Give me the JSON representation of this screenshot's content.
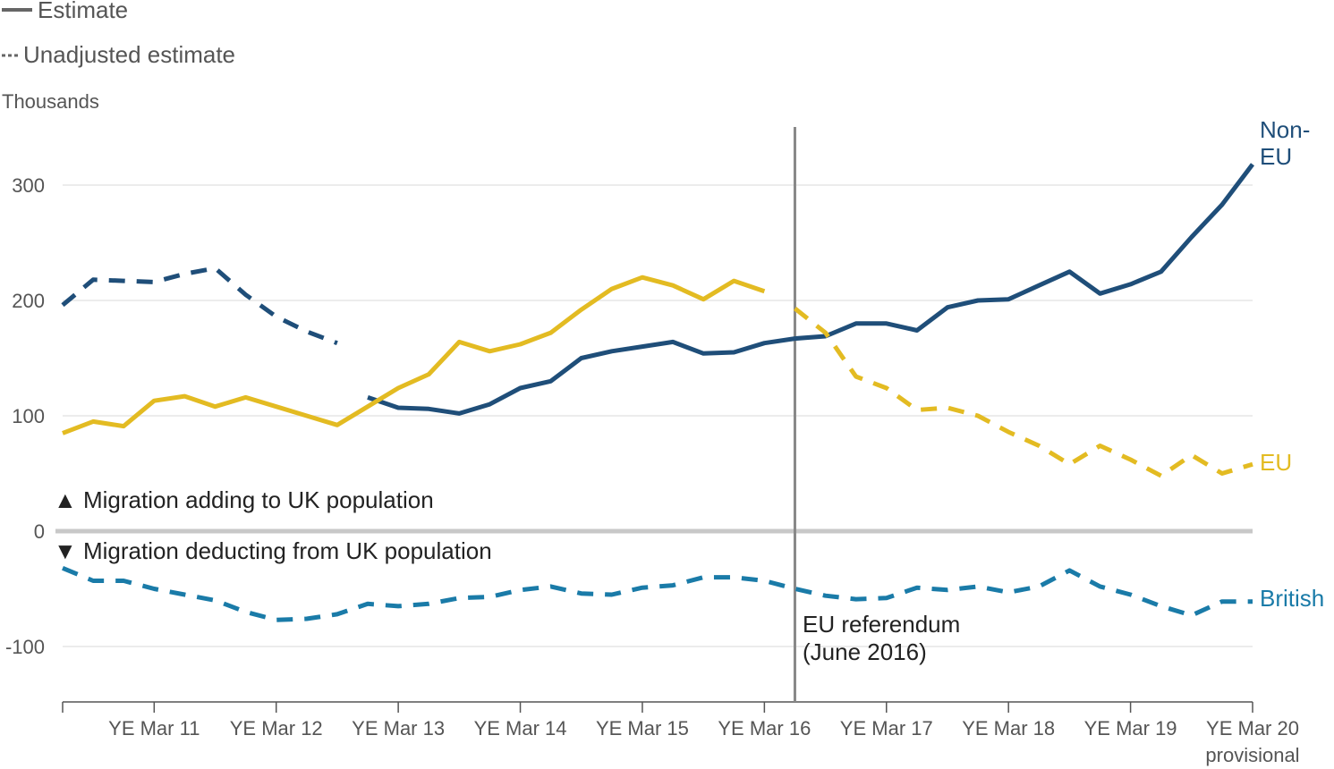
{
  "legend": {
    "solid": "Estimate",
    "dashed": "Unadjusted estimate"
  },
  "y_unit_label": "Thousands",
  "annotations": {
    "up": "▲ Migration adding to UK population",
    "down": "▼ Migration deducting from UK population",
    "referendum_line1": "EU referendum",
    "referendum_line2": "(June 2016)"
  },
  "series_labels": {
    "non_eu_1": "Non-",
    "non_eu_2": "EU",
    "eu": "EU",
    "british": "British"
  },
  "colors": {
    "non_eu": "#1f4e79",
    "eu": "#e3bb22",
    "british": "#1a7ba8",
    "zero_line": "#c8c8c8",
    "referendum_line": "#888888",
    "grid": "#e6e6e6",
    "axis": "#555555"
  },
  "chart_data": {
    "type": "line",
    "ylim": [
      -150,
      350
    ],
    "yticks": [
      300,
      200,
      100,
      0,
      -100
    ],
    "xlim": [
      0,
      39
    ],
    "xticks": [
      {
        "x": 3,
        "label": "YE Mar 11"
      },
      {
        "x": 7,
        "label": "YE Mar 12"
      },
      {
        "x": 11,
        "label": "YE Mar 13"
      },
      {
        "x": 15,
        "label": "YE Mar 14"
      },
      {
        "x": 19,
        "label": "YE Mar 15"
      },
      {
        "x": 23,
        "label": "YE Mar 16"
      },
      {
        "x": 27,
        "label": "YE Mar 17"
      },
      {
        "x": 31,
        "label": "YE Mar 18"
      },
      {
        "x": 35,
        "label": "YE Mar 19"
      },
      {
        "x": 39,
        "label": "YE Mar 20",
        "sublabel": "provisional"
      }
    ],
    "referendum_x": 24,
    "series": [
      {
        "key": "non_eu",
        "style": "dashed",
        "x": [
          0,
          1,
          2,
          3,
          4,
          5,
          6,
          7,
          8,
          9
        ],
        "values": [
          196,
          218,
          217,
          216,
          223,
          228,
          205,
          186,
          173,
          163
        ]
      },
      {
        "key": "non_eu",
        "style": "solid",
        "x": [
          10,
          11,
          12,
          13,
          14,
          15,
          16,
          17,
          18,
          19,
          20,
          21,
          22,
          23,
          24,
          25,
          26,
          27,
          28,
          29,
          30,
          31,
          32,
          33,
          34,
          35,
          36,
          37,
          38,
          39
        ],
        "values": [
          116,
          107,
          106,
          102,
          110,
          124,
          130,
          150,
          156,
          160,
          164,
          154,
          155,
          163,
          167,
          169,
          180,
          180,
          174,
          194,
          200,
          201,
          213,
          225,
          206,
          214,
          225,
          255,
          283,
          318
        ]
      },
      {
        "key": "eu",
        "style": "solid",
        "x": [
          0,
          1,
          2,
          3,
          4,
          5,
          6,
          7,
          8,
          9,
          10,
          11,
          12,
          13,
          14,
          15,
          16,
          17,
          18,
          19,
          20,
          21,
          22,
          23
        ],
        "values": [
          85,
          95,
          91,
          113,
          117,
          108,
          116,
          108,
          100,
          92,
          108,
          124,
          136,
          164,
          156,
          162,
          172,
          192,
          210,
          220,
          213,
          201,
          217,
          208
        ]
      },
      {
        "key": "eu",
        "style": "dashed",
        "x": [
          24,
          25,
          26,
          27,
          28,
          29,
          30,
          31,
          32,
          33,
          34,
          35,
          36,
          37,
          38,
          39
        ],
        "values": [
          193,
          172,
          134,
          124,
          105,
          107,
          100,
          86,
          74,
          58,
          74,
          62,
          48,
          66,
          50,
          58
        ]
      },
      {
        "key": "british",
        "style": "dashed",
        "x": [
          0,
          1,
          2,
          3,
          4,
          5,
          6,
          7,
          8,
          9,
          10,
          11,
          12,
          13,
          14,
          15,
          16,
          17,
          18,
          19,
          20,
          21,
          22,
          23,
          24,
          25,
          26,
          27,
          28,
          29,
          30,
          31,
          32,
          33,
          34,
          35,
          36,
          37,
          38,
          39
        ],
        "values": [
          -32,
          -43,
          -43,
          -50,
          -55,
          -60,
          -70,
          -77,
          -76,
          -72,
          -63,
          -65,
          -63,
          -58,
          -57,
          -51,
          -48,
          -54,
          -55,
          -49,
          -47,
          -40,
          -40,
          -43,
          -50,
          -56,
          -59,
          -58,
          -49,
          -51,
          -48,
          -53,
          -48,
          -34,
          -48,
          -55,
          -65,
          -73,
          -61,
          -61
        ]
      }
    ]
  }
}
